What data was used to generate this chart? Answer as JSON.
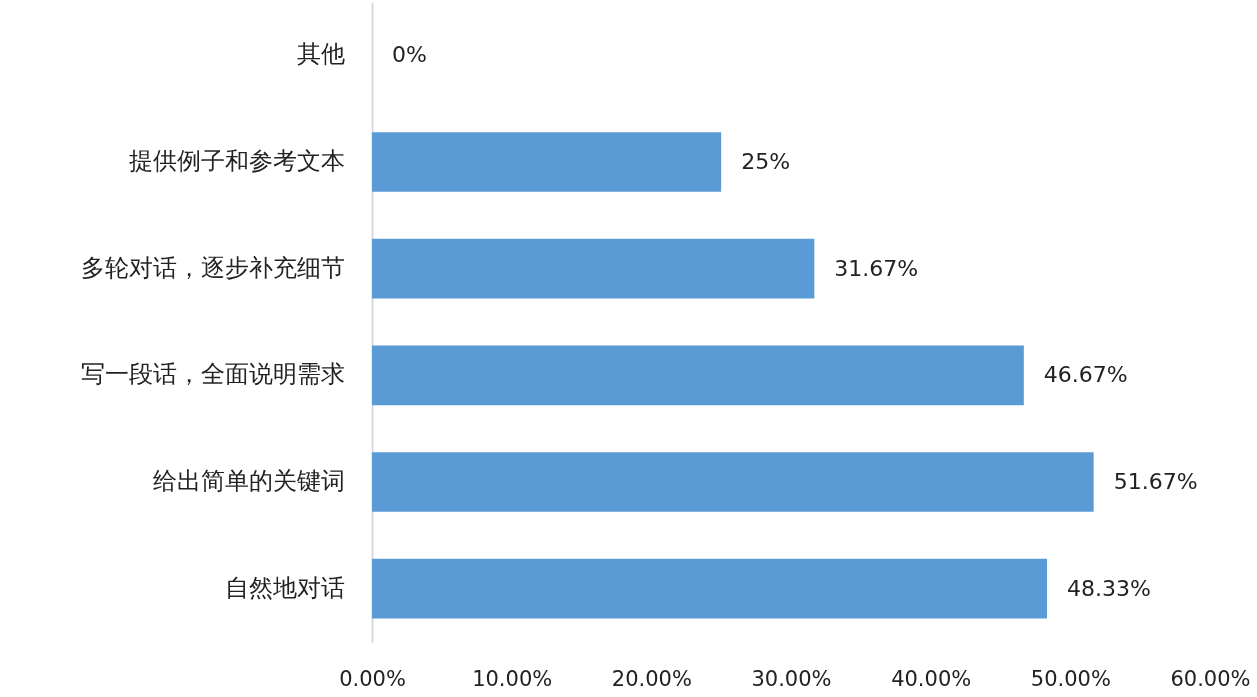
{
  "chart_data": {
    "type": "bar",
    "orientation": "horizontal",
    "categories": [
      "其他",
      "提供例子和参考文本",
      "多轮对话，逐步补充细节",
      "写一段话，全面说明需求",
      "给出简单的关键词",
      "自然地对话"
    ],
    "values": [
      0,
      25,
      31.67,
      46.67,
      51.67,
      48.33
    ],
    "value_labels": [
      "0%",
      "25%",
      "31.67%",
      "46.67%",
      "51.67%",
      "48.33%"
    ],
    "color": "#5b9bd5",
    "xlim": [
      0,
      60
    ],
    "xticks": [
      {
        "value": 0,
        "label": "0.00%"
      },
      {
        "value": 10,
        "label": "10.00%"
      },
      {
        "value": 20,
        "label": "20.00%"
      },
      {
        "value": 30,
        "label": "30.00%"
      },
      {
        "value": 40,
        "label": "40.00%"
      },
      {
        "value": 50,
        "label": "50.00%"
      },
      {
        "value": 60,
        "label": "60.00%"
      }
    ]
  }
}
